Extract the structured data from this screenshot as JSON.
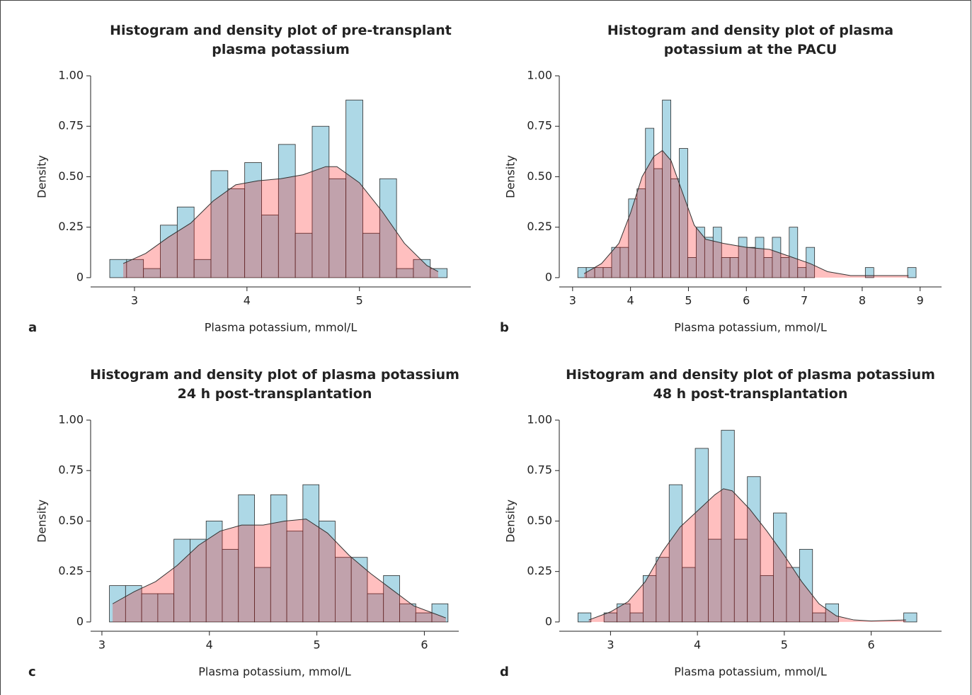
{
  "chart_data": [
    {
      "type": "histogram",
      "panel_label": "a",
      "title": [
        "Histogram and density plot of pre-transplant",
        "plasma potassium"
      ],
      "xlabel": "Plasma potassium, mmol/L",
      "ylabel": "Density",
      "bins": [
        2.78,
        2.93,
        3.08,
        3.23,
        3.38,
        3.53,
        3.68,
        3.83,
        3.98,
        4.13,
        4.28,
        4.43,
        4.58,
        4.73,
        4.88,
        5.03,
        5.18,
        5.33,
        5.48,
        5.63,
        5.78
      ],
      "values": [
        0.09,
        0.09,
        0.045,
        0.26,
        0.35,
        0.09,
        0.53,
        0.44,
        0.57,
        0.31,
        0.66,
        0.22,
        0.75,
        0.49,
        0.88,
        0.22,
        0.49,
        0.045,
        0.09,
        0.045
      ],
      "color": "#add8e6",
      "density": {
        "x": [
          2.9,
          3.1,
          3.3,
          3.5,
          3.7,
          3.9,
          4.1,
          4.3,
          4.5,
          4.7,
          4.8,
          5.0,
          5.2,
          5.4,
          5.6,
          5.7
        ],
        "y": [
          0.07,
          0.12,
          0.2,
          0.27,
          0.38,
          0.46,
          0.48,
          0.49,
          0.51,
          0.55,
          0.55,
          0.47,
          0.33,
          0.17,
          0.06,
          0.03
        ],
        "color": "#ff0000"
      },
      "xlim": [
        2.61,
        5.99
      ],
      "ylim": [
        -0.046,
        1.04
      ],
      "xticks": [
        3,
        4,
        5
      ],
      "yticks": [
        0,
        0.25,
        {
          "value": 0.5,
          "label": "0.50"
        },
        0.75,
        {
          "value": 1,
          "label": "1.00"
        }
      ]
    },
    {
      "type": "histogram",
      "panel_label": "b",
      "title": [
        "Histogram and density plot of plasma",
        "potassium at the PACU"
      ],
      "xlabel": "Plasma potassium, mmol/L",
      "ylabel": "Density",
      "bins": [
        3.09,
        3.236,
        3.382,
        3.528,
        3.674,
        3.82,
        3.966,
        4.112,
        4.258,
        4.404,
        4.55,
        4.696,
        4.842,
        4.988,
        5.134,
        5.28,
        5.426,
        5.572,
        5.718,
        5.864,
        6.01,
        6.156,
        6.302,
        6.448,
        6.594,
        6.74,
        6.886,
        7.032,
        7.178,
        7.324,
        7.47,
        7.616,
        7.762,
        7.908,
        8.054,
        8.2,
        8.346,
        8.492,
        8.638,
        8.784,
        8.93
      ],
      "values": [
        0.05,
        0.05,
        0.05,
        0.05,
        0.15,
        0.15,
        0.39,
        0.44,
        0.74,
        0.54,
        0.88,
        0.49,
        0.64,
        0.1,
        0.25,
        0.2,
        0.25,
        0.1,
        0.1,
        0.2,
        0.15,
        0.2,
        0.1,
        0.2,
        0.1,
        0.25,
        0.05,
        0.15,
        0,
        0,
        0,
        0,
        0,
        0,
        0.05,
        0,
        0,
        0,
        0,
        0.05
      ],
      "color": "#add8e6",
      "density": {
        "x": [
          3.2,
          3.5,
          3.8,
          4.0,
          4.2,
          4.4,
          4.55,
          4.7,
          4.9,
          5.1,
          5.3,
          5.6,
          6.0,
          6.4,
          6.8,
          7.1,
          7.4,
          7.8,
          8.2,
          8.5,
          8.8
        ],
        "y": [
          0.02,
          0.07,
          0.17,
          0.32,
          0.5,
          0.6,
          0.63,
          0.58,
          0.42,
          0.26,
          0.19,
          0.17,
          0.15,
          0.14,
          0.1,
          0.07,
          0.03,
          0.01,
          0.01,
          0.01,
          0.01
        ],
        "color": "#ff0000"
      },
      "xlim": [
        2.77,
        9.37
      ],
      "ylim": [
        -0.046,
        1.04
      ],
      "xticks": [
        3,
        4,
        5,
        6,
        7,
        8,
        9
      ],
      "yticks": [
        0,
        0.25,
        {
          "value": 0.5,
          "label": "0.50"
        },
        0.75,
        {
          "value": 1,
          "label": "1.00"
        }
      ]
    },
    {
      "type": "histogram",
      "panel_label": "c",
      "title": [
        "Histogram and density plot of plasma potassium",
        "24 h post-transplantation"
      ],
      "xlabel": "Plasma potassium, mmol/L",
      "ylabel": "Density",
      "bins": [
        3.07,
        3.22,
        3.37,
        3.52,
        3.67,
        3.82,
        3.97,
        4.12,
        4.27,
        4.42,
        4.57,
        4.72,
        4.87,
        5.02,
        5.17,
        5.32,
        5.47,
        5.62,
        5.77,
        5.92,
        6.07,
        6.22
      ],
      "values": [
        0.18,
        0.18,
        0.14,
        0.14,
        0.41,
        0.41,
        0.5,
        0.36,
        0.63,
        0.27,
        0.63,
        0.45,
        0.68,
        0.5,
        0.32,
        0.32,
        0.14,
        0.23,
        0.09,
        0.045,
        0.09
      ],
      "color": "#add8e6",
      "density": {
        "x": [
          3.1,
          3.3,
          3.5,
          3.7,
          3.9,
          4.1,
          4.3,
          4.5,
          4.7,
          4.9,
          5.1,
          5.3,
          5.5,
          5.7,
          5.9,
          6.1,
          6.2
        ],
        "y": [
          0.09,
          0.15,
          0.2,
          0.28,
          0.38,
          0.45,
          0.48,
          0.48,
          0.5,
          0.51,
          0.44,
          0.33,
          0.24,
          0.16,
          0.08,
          0.04,
          0.02
        ],
        "color": "#ff0000"
      },
      "xlim": [
        2.895,
        6.32
      ],
      "ylim": [
        -0.046,
        1.04
      ],
      "xticks": [
        3,
        4,
        5,
        6
      ],
      "yticks": [
        0,
        0.25,
        {
          "value": 0.5,
          "label": "0.50"
        },
        0.75,
        {
          "value": 1,
          "label": "1.00"
        }
      ]
    },
    {
      "type": "histogram",
      "panel_label": "d",
      "title": [
        "Histogram and density plot of plasma potassium",
        "48 h post-transplantation"
      ],
      "xlabel": "Plasma potassium, mmol/L",
      "ylabel": "Density",
      "bins": [
        2.625,
        2.775,
        2.925,
        3.075,
        3.225,
        3.375,
        3.525,
        3.675,
        3.825,
        3.975,
        4.125,
        4.275,
        4.425,
        4.575,
        4.725,
        4.875,
        5.025,
        5.175,
        5.325,
        5.475,
        5.625,
        5.775,
        5.925,
        6.075,
        6.225,
        6.375,
        6.525
      ],
      "values": [
        0.045,
        0,
        0.045,
        0.09,
        0.045,
        0.23,
        0.32,
        0.68,
        0.27,
        0.86,
        0.41,
        0.95,
        0.41,
        0.72,
        0.23,
        0.54,
        0.27,
        0.36,
        0.045,
        0.09,
        0,
        0,
        0,
        0,
        0,
        0.045
      ],
      "color": "#add8e6",
      "density": {
        "x": [
          2.75,
          3.0,
          3.2,
          3.4,
          3.6,
          3.8,
          4.0,
          4.2,
          4.3,
          4.4,
          4.6,
          4.8,
          5.0,
          5.2,
          5.4,
          5.6,
          5.8,
          6.0,
          6.4
        ],
        "y": [
          0.01,
          0.05,
          0.1,
          0.2,
          0.35,
          0.47,
          0.55,
          0.63,
          0.66,
          0.65,
          0.56,
          0.45,
          0.33,
          0.2,
          0.09,
          0.03,
          0.01,
          0.005,
          0.01
        ],
        "color": "#ff0000"
      },
      "xlim": [
        2.41,
        6.81
      ],
      "ylim": [
        -0.046,
        1.04
      ],
      "xticks": [
        3,
        4,
        5,
        6
      ],
      "yticks": [
        0,
        0.25,
        {
          "value": 0.5,
          "label": "0.50"
        },
        0.75,
        {
          "value": 1,
          "label": "1.00"
        }
      ]
    }
  ]
}
